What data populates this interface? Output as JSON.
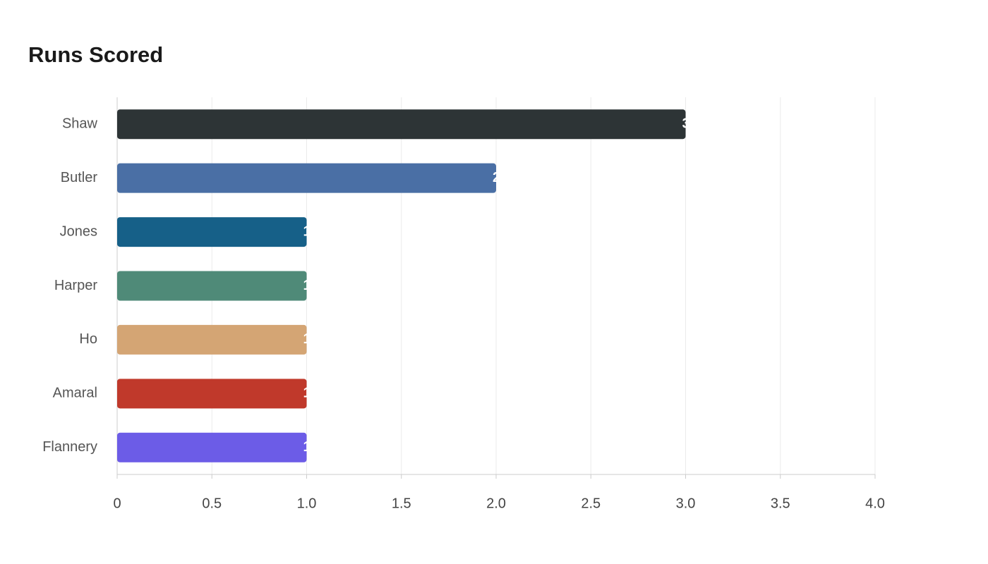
{
  "chart_data": {
    "type": "hbar",
    "title": "Runs Scored",
    "categories": [
      "Shaw",
      "Butler",
      "Jones",
      "Harper",
      "Ho",
      "Amaral",
      "Flannery"
    ],
    "values": [
      3,
      2,
      1,
      1,
      1,
      1,
      1
    ],
    "colors": [
      "#2d3436",
      "#4a6fa5",
      "#166088",
      "#4f8a78",
      "#d4a574",
      "#c0392b",
      "#6c5ce7"
    ],
    "xlim": [
      0,
      4
    ],
    "xticks": [
      0,
      0.5,
      {
        "value": 1,
        "label": "1.0"
      },
      1.5,
      {
        "value": 2,
        "label": "2.0"
      },
      2.5,
      {
        "value": 3,
        "label": "3.0"
      },
      3.5,
      {
        "value": 4,
        "label": "4.0"
      }
    ],
    "grid": true
  }
}
